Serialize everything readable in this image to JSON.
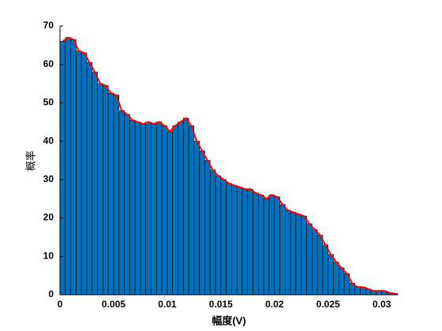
{
  "chart_data": {
    "type": "histogram",
    "xlabel": "幅度(V)",
    "ylabel": "概率",
    "bins": [
      0,
      0.0005,
      0.001,
      0.0015,
      0.002,
      0.0025,
      0.003,
      0.0035,
      0.004,
      0.0045,
      0.005,
      0.0055,
      0.006,
      0.0065,
      0.007,
      0.0075,
      0.008,
      0.0085,
      0.009,
      0.0095,
      0.01,
      0.0105,
      0.011,
      0.0115,
      0.012,
      0.0125,
      0.013,
      0.0135,
      0.014,
      0.0145,
      0.015,
      0.0155,
      0.016,
      0.0165,
      0.017,
      0.0175,
      0.018,
      0.0185,
      0.019,
      0.0195,
      0.02,
      0.0205,
      0.021,
      0.0215,
      0.022,
      0.0225,
      0.023,
      0.0235,
      0.024,
      0.0245,
      0.025,
      0.0255,
      0.026,
      0.0265,
      0.027,
      0.0275,
      0.028,
      0.0285,
      0.029,
      0.0295,
      0.03,
      0.0305,
      0.031,
      0.0315
    ],
    "values": [
      66,
      67,
      66.5,
      63.5,
      63,
      60.5,
      58,
      55,
      54.5,
      52.5,
      52,
      48,
      47,
      45.5,
      45,
      44.5,
      45,
      44.5,
      45,
      44,
      42.5,
      44,
      45,
      46,
      44,
      40,
      37.5,
      35,
      32.5,
      31,
      30,
      29,
      28.5,
      28,
      27.5,
      27.5,
      26.5,
      26,
      25,
      26,
      25.5,
      23.5,
      22,
      21.5,
      21,
      20.5,
      18.5,
      17,
      15.5,
      13,
      10.5,
      8.5,
      7,
      5.5,
      3,
      2,
      2,
      1.5,
      1,
      1,
      1,
      0.5,
      0.3
    ],
    "color": "#0072bd",
    "line_color": "#ff0000",
    "xlim": [
      0,
      0.0315
    ],
    "xticks": [
      0,
      0.005,
      0.01,
      0.015,
      0.02,
      0.025,
      0.03
    ],
    "ylim": [
      0,
      70
    ],
    "yticks": [
      0,
      10,
      20,
      30,
      40,
      50,
      60,
      70
    ]
  }
}
